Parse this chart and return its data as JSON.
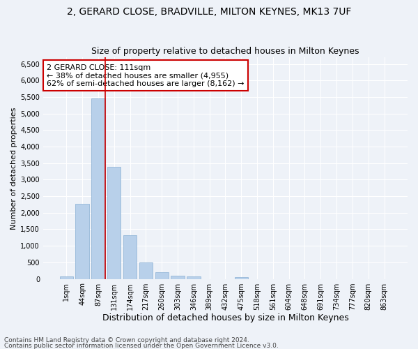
{
  "title1": "2, GERARD CLOSE, BRADVILLE, MILTON KEYNES, MK13 7UF",
  "title2": "Size of property relative to detached houses in Milton Keynes",
  "xlabel": "Distribution of detached houses by size in Milton Keynes",
  "ylabel": "Number of detached properties",
  "footnote1": "Contains HM Land Registry data © Crown copyright and database right 2024.",
  "footnote2": "Contains public sector information licensed under the Open Government Licence v3.0.",
  "bar_labels": [
    "1sqm",
    "44sqm",
    "87sqm",
    "131sqm",
    "174sqm",
    "217sqm",
    "260sqm",
    "303sqm",
    "346sqm",
    "389sqm",
    "432sqm",
    "475sqm",
    "518sqm",
    "561sqm",
    "604sqm",
    "648sqm",
    "691sqm",
    "734sqm",
    "777sqm",
    "820sqm",
    "863sqm"
  ],
  "bar_values": [
    80,
    2280,
    5450,
    3380,
    1310,
    490,
    200,
    100,
    70,
    0,
    0,
    60,
    0,
    0,
    0,
    0,
    0,
    0,
    0,
    0,
    0
  ],
  "bar_color": "#b8d0ea",
  "bar_edge_color": "#8ab0d4",
  "vline_color": "#cc0000",
  "annotation_text": "2 GERARD CLOSE: 111sqm\n← 38% of detached houses are smaller (4,955)\n62% of semi-detached houses are larger (8,162) →",
  "annotation_box_color": "white",
  "annotation_box_edge": "#cc0000",
  "ylim": [
    0,
    6700
  ],
  "yticks": [
    0,
    500,
    1000,
    1500,
    2000,
    2500,
    3000,
    3500,
    4000,
    4500,
    5000,
    5500,
    6000,
    6500
  ],
  "background_color": "#eef2f8",
  "grid_color": "white",
  "title1_fontsize": 10,
  "title2_fontsize": 9,
  "xlabel_fontsize": 9,
  "ylabel_fontsize": 8,
  "tick_fontsize": 7,
  "annotation_fontsize": 8,
  "footnote_fontsize": 6.5
}
